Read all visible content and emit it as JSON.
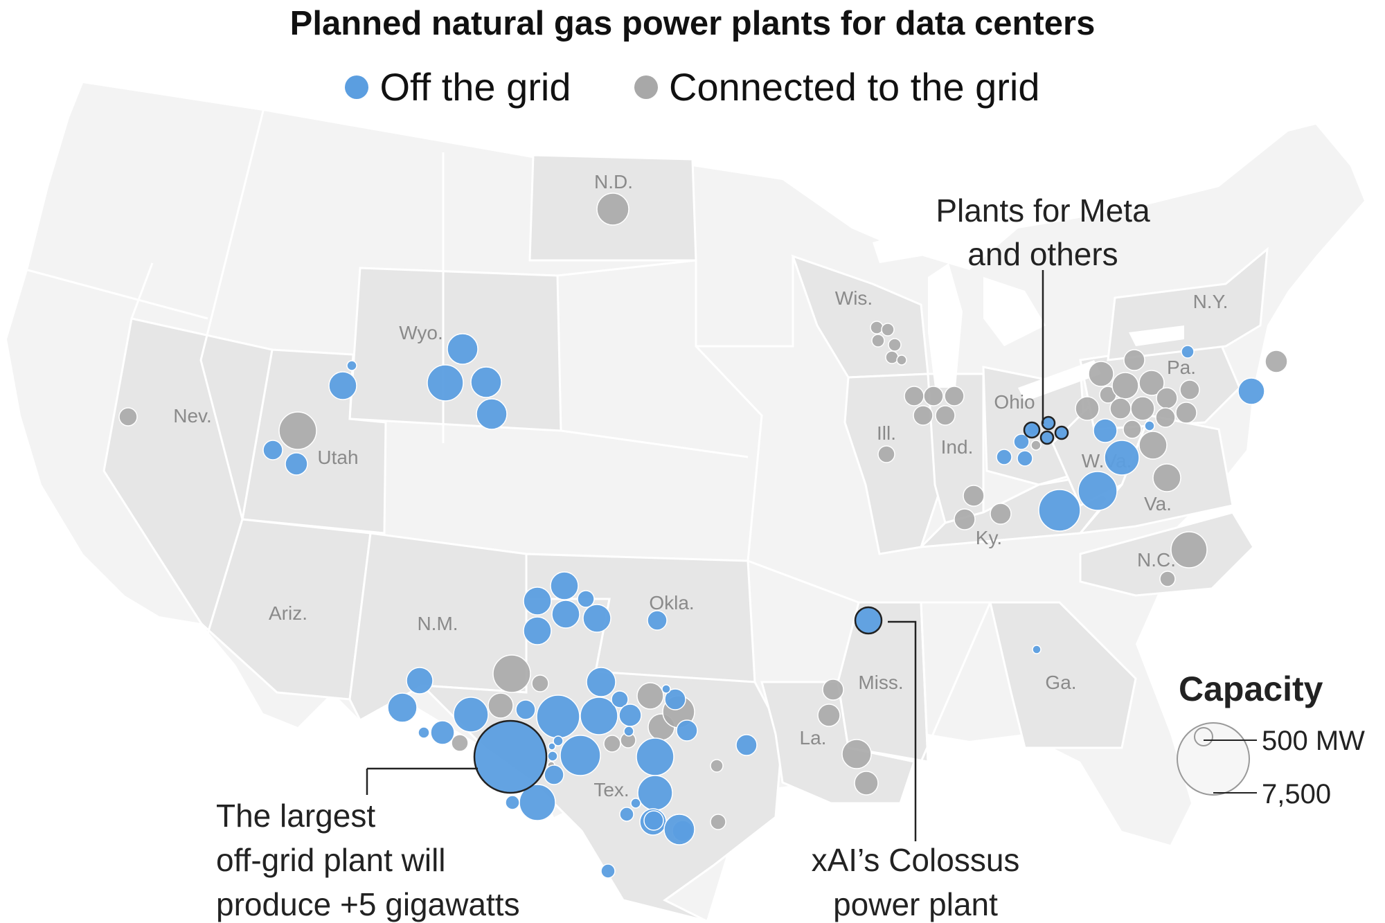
{
  "title": "Planned natural gas power plants for data centers",
  "legend": {
    "off_grid": {
      "label": "Off the grid",
      "color": "#5b9ee0"
    },
    "on_grid": {
      "label": "Connected to the grid",
      "color": "#a8a8a8"
    }
  },
  "state_labels": [
    "N.D.",
    "Wis.",
    "N.Y.",
    "Wyo.",
    "Pa.",
    "Ohio",
    "Nev.",
    "Ill.",
    "Ind.",
    "W.Va.",
    "Utah",
    "Va.",
    "Ky.",
    "N.C.",
    "Okla.",
    "Ariz.",
    "N.M.",
    "Miss.",
    "Ga.",
    "La.",
    "Tex."
  ],
  "annotations": {
    "meta": [
      "Plants for Meta",
      "and others"
    ],
    "largest": [
      "The largest",
      "off-grid plant will",
      "produce +5 gigawatts"
    ],
    "colossus": [
      "xAI’s Colossus",
      "power plant"
    ]
  },
  "capacity_legend": {
    "title": "Capacity",
    "small": "500 MW",
    "large": "7,500"
  },
  "colors": {
    "land": "#e6e6e6",
    "land_light": "#f3f3f3",
    "border": "#ffffff",
    "off_grid": "#5b9ee0",
    "on_grid": "#a8a8a8",
    "highlight_stroke": "#222222"
  }
}
